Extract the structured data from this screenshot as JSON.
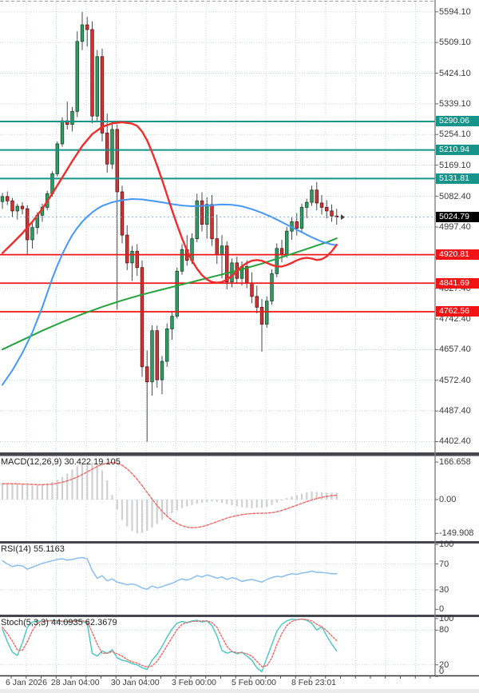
{
  "window": {
    "bg": "#ffffff"
  },
  "colors": {
    "grid": "#c8d6f0",
    "up_fill": "#2e9e63",
    "up_edge": "#17482b",
    "down_fill": "#d23535",
    "down_edge": "#5d1414",
    "wick": "#4a4a4a",
    "ma_fast": "#f02c2c",
    "ma_mid": "#4499f7",
    "ma_slow": "#24a33c",
    "resistance": "#169489",
    "support": "#f01414",
    "current_line": "#85aee8",
    "current_badge": "#000000",
    "macd_bar": "#d0d0d0",
    "macd_signal": "#f26666",
    "rsi_line": "#8abdf0",
    "stoch_k": "#45c8c0",
    "stoch_d": "#f26666",
    "separator": "#46464e",
    "axis_text": "#3a3a3a",
    "axis_line": "#808080"
  },
  "price_axis": {
    "ticks": [
      "5594.10",
      "5509.10",
      "5424.10",
      "5339.10",
      "5254.10",
      "5169.10",
      "5082.40",
      "4997.40",
      "4912.40",
      "4827.40",
      "4742.40",
      "4657.40",
      "4572.40",
      "4487.40",
      "4402.40"
    ],
    "resistance_badges": [
      "5290.06",
      "5210.94",
      "5131.81"
    ],
    "support_badges": [
      "4920.81",
      "4841.69",
      "4762.56"
    ],
    "current_badge": "5024.79"
  },
  "time_axis": {
    "labels": [
      {
        "text": "6 Jan 2026",
        "i": 4.8
      },
      {
        "text": "28 Jan 04:00",
        "i": 14.6
      },
      {
        "text": "30 Jan 04:00",
        "i": 26.6
      },
      {
        "text": "3 Feb 00:00",
        "i": 38.4
      },
      {
        "text": "5 Feb 00:00",
        "i": 50.4
      },
      {
        "text": "8 Feb 23:01",
        "i": 62.4
      }
    ]
  },
  "chart_data": [
    {
      "type": "candlestick",
      "panel": "price",
      "title": "",
      "ylim": [
        4402.4,
        5594.1
      ],
      "y_ticks": [
        5594.1,
        5509.1,
        5424.1,
        5339.1,
        5254.1,
        5169.1,
        5082.4,
        4997.4,
        4912.4,
        4827.4,
        4742.4,
        4657.4,
        4572.4,
        4487.4,
        4402.4
      ],
      "h_lines_resistance": [
        5290.06,
        5210.94,
        5131.81
      ],
      "h_lines_support": [
        4920.81,
        4841.69,
        4762.56
      ],
      "current_price": 5024.79,
      "candles": [
        [
          5068,
          5092,
          5048,
          5082
        ],
        [
          5082,
          5096,
          5058,
          5070
        ],
        [
          5070,
          5078,
          5025,
          5042
        ],
        [
          5042,
          5062,
          5018,
          5055
        ],
        [
          5055,
          5066,
          5032,
          5048
        ],
        [
          5048,
          5058,
          4922,
          4962
        ],
        [
          4962,
          5008,
          4938,
          4996
        ],
        [
          4996,
          5038,
          4978,
          5030
        ],
        [
          5030,
          5062,
          5012,
          5052
        ],
        [
          5052,
          5098,
          5044,
          5090
        ],
        [
          5090,
          5152,
          5082,
          5145
        ],
        [
          5145,
          5235,
          5138,
          5228
        ],
        [
          5228,
          5302,
          5220,
          5292
        ],
        [
          5292,
          5345,
          5268,
          5282
        ],
        [
          5282,
          5330,
          5262,
          5318
        ],
        [
          5318,
          5540,
          5302,
          5512
        ],
        [
          5512,
          5594,
          5488,
          5558
        ],
        [
          5558,
          5580,
          5498,
          5545
        ],
        [
          5545,
          5568,
          5285,
          5305
        ],
        [
          5305,
          5488,
          5288,
          5470
        ],
        [
          5470,
          5492,
          5235,
          5258
        ],
        [
          5258,
          5312,
          5148,
          5172
        ],
        [
          5172,
          5288,
          5158,
          5268
        ],
        [
          5268,
          5282,
          4768,
          5095
        ],
        [
          5095,
          5112,
          4952,
          4975
        ],
        [
          4975,
          5002,
          4878,
          4898
        ],
        [
          4898,
          4945,
          4848,
          4930
        ],
        [
          4930,
          4950,
          4862,
          4885
        ],
        [
          4885,
          4905,
          4582,
          4610
        ],
        [
          4610,
          4655,
          4402,
          4568
        ],
        [
          4568,
          4725,
          4530,
          4710
        ],
        [
          4710,
          4724,
          4552,
          4574
        ],
        [
          4574,
          4640,
          4534,
          4625
        ],
        [
          4625,
          4730,
          4610,
          4715
        ],
        [
          4715,
          4765,
          4685,
          4750
        ],
        [
          4750,
          4885,
          4744,
          4875
        ],
        [
          4875,
          4950,
          4865,
          4935
        ],
        [
          4935,
          4975,
          4890,
          4905
        ],
        [
          4905,
          4980,
          4895,
          4965
        ],
        [
          4965,
          5090,
          4955,
          5070
        ],
        [
          5070,
          5094,
          4985,
          5005
        ],
        [
          5005,
          5080,
          4965,
          5060
        ],
        [
          5060,
          5086,
          4945,
          4965
        ],
        [
          4965,
          5032,
          4895,
          4920
        ],
        [
          4920,
          4975,
          4855,
          4945
        ],
        [
          4945,
          4958,
          4825,
          4845
        ],
        [
          4845,
          4910,
          4830,
          4898
        ],
        [
          4898,
          4915,
          4840,
          4855
        ],
        [
          4855,
          4902,
          4835,
          4888
        ],
        [
          4888,
          4905,
          4828,
          4842
        ],
        [
          4842,
          4872,
          4786,
          4805
        ],
        [
          4805,
          4835,
          4758,
          4775
        ],
        [
          4775,
          4798,
          4652,
          4728
        ],
        [
          4728,
          4805,
          4718,
          4792
        ],
        [
          4792,
          4880,
          4782,
          4868
        ],
        [
          4868,
          4952,
          4858,
          4938
        ],
        [
          4938,
          4962,
          4900,
          4922
        ],
        [
          4922,
          4998,
          4912,
          4986
        ],
        [
          4986,
          5024,
          4962,
          5012
        ],
        [
          5012,
          5036,
          4974,
          4994
        ],
        [
          4994,
          5062,
          4984,
          5052
        ],
        [
          5052,
          5076,
          5022,
          5066
        ],
        [
          5066,
          5112,
          5056,
          5100
        ],
        [
          5100,
          5122,
          5044,
          5064
        ],
        [
          5064,
          5086,
          5032,
          5052
        ],
        [
          5052,
          5072,
          5022,
          5042
        ],
        [
          5042,
          5060,
          5012,
          5028
        ],
        [
          5028,
          5048,
          5004,
          5025
        ]
      ],
      "ma_fast": [
        [
          0,
          4925
        ],
        [
          2,
          4952
        ],
        [
          4,
          4980
        ],
        [
          6,
          5012
        ],
        [
          8,
          5048
        ],
        [
          10,
          5090
        ],
        [
          12,
          5135
        ],
        [
          14,
          5180
        ],
        [
          16,
          5222
        ],
        [
          18,
          5255
        ],
        [
          20,
          5275
        ],
        [
          22,
          5285
        ],
        [
          24,
          5288
        ],
        [
          26,
          5284
        ],
        [
          27,
          5278
        ],
        [
          28,
          5262
        ],
        [
          29,
          5238
        ],
        [
          30,
          5205
        ],
        [
          31,
          5168
        ],
        [
          32,
          5128
        ],
        [
          33,
          5086
        ],
        [
          34,
          5044
        ],
        [
          35,
          5004
        ],
        [
          36,
          4966
        ],
        [
          37,
          4932
        ],
        [
          38,
          4904
        ],
        [
          39,
          4882
        ],
        [
          40,
          4864
        ],
        [
          41,
          4852
        ],
        [
          42,
          4845
        ],
        [
          43,
          4843
        ],
        [
          44,
          4845
        ],
        [
          45,
          4852
        ],
        [
          46,
          4862
        ],
        [
          47,
          4875
        ],
        [
          48,
          4888
        ],
        [
          49,
          4898
        ],
        [
          50,
          4904
        ],
        [
          51,
          4906
        ],
        [
          52,
          4904
        ],
        [
          53,
          4898
        ],
        [
          54,
          4892
        ],
        [
          55,
          4888
        ],
        [
          56,
          4888
        ],
        [
          57,
          4892
        ],
        [
          58,
          4898
        ],
        [
          59,
          4905
        ],
        [
          60,
          4910
        ],
        [
          61,
          4912
        ],
        [
          62,
          4910
        ],
        [
          63,
          4906
        ],
        [
          64,
          4908
        ],
        [
          65,
          4916
        ],
        [
          66,
          4930
        ],
        [
          67,
          4948
        ]
      ],
      "ma_mid": [
        [
          0,
          4560
        ],
        [
          2,
          4600
        ],
        [
          4,
          4648
        ],
        [
          6,
          4705
        ],
        [
          8,
          4775
        ],
        [
          9,
          4815
        ],
        [
          10,
          4855
        ],
        [
          11,
          4890
        ],
        [
          12,
          4922
        ],
        [
          13,
          4950
        ],
        [
          14,
          4975
        ],
        [
          15,
          4995
        ],
        [
          16,
          5012
        ],
        [
          17,
          5026
        ],
        [
          18,
          5038
        ],
        [
          19,
          5048
        ],
        [
          20,
          5056
        ],
        [
          22,
          5066
        ],
        [
          24,
          5072
        ],
        [
          26,
          5075
        ],
        [
          28,
          5074
        ],
        [
          30,
          5070
        ],
        [
          32,
          5066
        ],
        [
          34,
          5061
        ],
        [
          36,
          5057
        ],
        [
          38,
          5055
        ],
        [
          40,
          5056
        ],
        [
          42,
          5058
        ],
        [
          44,
          5060
        ],
        [
          46,
          5059
        ],
        [
          48,
          5055
        ],
        [
          50,
          5047
        ],
        [
          52,
          5037
        ],
        [
          54,
          5025
        ],
        [
          56,
          5011
        ],
        [
          58,
          4997
        ],
        [
          60,
          4983
        ],
        [
          62,
          4969
        ],
        [
          64,
          4957
        ],
        [
          66,
          4949
        ],
        [
          67,
          4947
        ]
      ],
      "ma_slow": [
        [
          0,
          4658
        ],
        [
          4,
          4684
        ],
        [
          8,
          4710
        ],
        [
          12,
          4734
        ],
        [
          16,
          4756
        ],
        [
          20,
          4776
        ],
        [
          24,
          4794
        ],
        [
          28,
          4810
        ],
        [
          32,
          4824
        ],
        [
          36,
          4838
        ],
        [
          40,
          4852
        ],
        [
          44,
          4866
        ],
        [
          48,
          4880
        ],
        [
          52,
          4896
        ],
        [
          56,
          4914
        ],
        [
          60,
          4932
        ],
        [
          63,
          4946
        ],
        [
          65,
          4955
        ],
        [
          67,
          4966
        ]
      ]
    },
    {
      "type": "bar",
      "panel": "macd",
      "label": "MACD(12,26,9) 30.422 19.105",
      "y_ticks": [
        "166.658",
        "0.00",
        "-149.908"
      ],
      "ylim": [
        -180,
        190
      ],
      "histogram": [
        70,
        71,
        72,
        70,
        68,
        64,
        62,
        64,
        68,
        72,
        78,
        88,
        100,
        115,
        132,
        148,
        160,
        166,
        164,
        156,
        130,
        85,
        20,
        -45,
        -90,
        -120,
        -140,
        -150,
        -148,
        -138,
        -124,
        -108,
        -90,
        -74,
        -60,
        -48,
        -38,
        -30,
        -24,
        -18,
        -14,
        -10,
        -8,
        -10,
        -14,
        -20,
        -26,
        -30,
        -34,
        -36,
        -38,
        -36,
        -38,
        -32,
        -24,
        -14,
        -4,
        6,
        14,
        20,
        26,
        32,
        36,
        34,
        32,
        30,
        30,
        30
      ],
      "signal": [
        70,
        70,
        70,
        70,
        69,
        68,
        67,
        66,
        66,
        67,
        69,
        72,
        77,
        83,
        91,
        100,
        111,
        123,
        135,
        147,
        156,
        162,
        165,
        162,
        152,
        136,
        115,
        90,
        62,
        32,
        2,
        -26,
        -52,
        -74,
        -92,
        -106,
        -116,
        -122,
        -125,
        -124,
        -120,
        -114,
        -106,
        -98,
        -90,
        -82,
        -76,
        -71,
        -67,
        -64,
        -62,
        -61,
        -61,
        -60,
        -58,
        -54,
        -48,
        -41,
        -33,
        -25,
        -17,
        -9,
        -2,
        5,
        10,
        14,
        17,
        19
      ]
    },
    {
      "type": "line",
      "panel": "rsi",
      "label": "RSI(14) 55.1163",
      "y_ticks": [
        100,
        70,
        30,
        0
      ],
      "ylim": [
        0,
        100
      ],
      "values": [
        75,
        70,
        66,
        68,
        67,
        62,
        65,
        68,
        71,
        73,
        75,
        77,
        78,
        76,
        77,
        79,
        80,
        78,
        60,
        48,
        52,
        44,
        47,
        42,
        40,
        38,
        39,
        37,
        33,
        31,
        36,
        33,
        35,
        38,
        40,
        44,
        47,
        45,
        48,
        52,
        50,
        53,
        51,
        48,
        50,
        46,
        49,
        47,
        43,
        45,
        46,
        44,
        42,
        46,
        49,
        51,
        50,
        53,
        55,
        54,
        56,
        57,
        59,
        57,
        57,
        56,
        55,
        55
      ]
    },
    {
      "type": "line",
      "panel": "stoch",
      "label": "Stoch(5,3,3) 44.0935 62.3679",
      "y_ticks": [
        100,
        80,
        20,
        0
      ],
      "ylim": [
        0,
        100
      ],
      "k": [
        82,
        60,
        42,
        36,
        58,
        85,
        94,
        96,
        95,
        96,
        97,
        96,
        95,
        94,
        96,
        97,
        95,
        92,
        40,
        35,
        44,
        40,
        46,
        32,
        28,
        26,
        22,
        20,
        15,
        12,
        28,
        38,
        52,
        68,
        82,
        92,
        95,
        93,
        96,
        97,
        94,
        96,
        88,
        70,
        45,
        40,
        43,
        39,
        42,
        35,
        28,
        15,
        8,
        32,
        55,
        78,
        90,
        96,
        99,
        98,
        99,
        97,
        92,
        80,
        86,
        70,
        56,
        44
      ],
      "d": [
        85,
        74,
        61,
        46,
        45,
        60,
        79,
        92,
        95,
        96,
        96,
        96,
        96,
        95,
        95,
        96,
        96,
        95,
        76,
        56,
        40,
        40,
        43,
        39,
        35,
        29,
        25,
        23,
        19,
        16,
        18,
        26,
        39,
        53,
        67,
        81,
        90,
        93,
        95,
        95,
        96,
        96,
        93,
        85,
        68,
        52,
        43,
        41,
        41,
        39,
        35,
        26,
        17,
        18,
        32,
        55,
        74,
        88,
        95,
        98,
        99,
        98,
        96,
        90,
        86,
        79,
        70,
        62
      ]
    }
  ]
}
